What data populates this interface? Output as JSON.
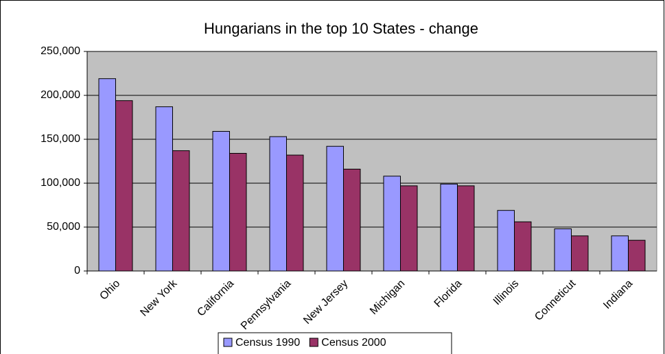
{
  "chart_data": {
    "type": "bar",
    "title": "Hungarians in the top 10 States - change",
    "categories": [
      "Ohio",
      "New York",
      "California",
      "Pennsylvania",
      "New Jersey",
      "Michigan",
      "Florida",
      "Illinois",
      "Conneticut",
      "Indiana"
    ],
    "series": [
      {
        "name": "Census 1990",
        "color": "#9999ff",
        "values": [
          219000,
          187000,
          159000,
          153000,
          142000,
          108000,
          99000,
          69000,
          48000,
          40000
        ]
      },
      {
        "name": "Census 2000",
        "color": "#993366",
        "values": [
          194000,
          137000,
          134000,
          132000,
          116000,
          97000,
          97000,
          56000,
          40000,
          35000
        ]
      }
    ],
    "ylim": [
      0,
      250000
    ],
    "yticks": [
      0,
      {
        "value": 50000,
        "label": "50,000"
      },
      {
        "value": 100000,
        "label": "100,000"
      },
      {
        "value": 150000,
        "label": "150,000"
      },
      {
        "value": 200000,
        "label": "200,000"
      },
      {
        "value": 250000,
        "label": "250,000"
      }
    ],
    "grid": true,
    "legend": "bottom"
  }
}
